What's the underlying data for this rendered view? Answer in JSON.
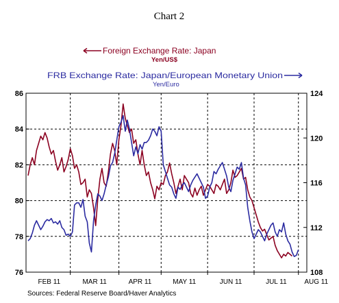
{
  "chart_data": {
    "type": "line",
    "title": "Chart 2",
    "x_categories": [
      "FEB 11",
      "MAR 11",
      "APR 11",
      "MAY 11",
      "JUN 11",
      "JUL 11",
      "AUG 11"
    ],
    "y_left": {
      "min": 76,
      "max": 86,
      "ticks": [
        "76",
        "78",
        "80",
        "82",
        "84",
        "86"
      ]
    },
    "y_right": {
      "min": 108,
      "max": 124,
      "ticks": [
        "108",
        "112",
        "116",
        "120",
        "124"
      ]
    },
    "grid": true,
    "source": "Sources:  Federal Reserve Board/Haver Analytics",
    "series": [
      {
        "name": "Foreign Exchange Rate: Japan",
        "unit": "Yen/US$",
        "axis": "left",
        "color": "#8b0020",
        "x": [
          0,
          1,
          2,
          3,
          4,
          5,
          6,
          7,
          8,
          9,
          10,
          11,
          12,
          13,
          14,
          15,
          16,
          17,
          18,
          19,
          20,
          21,
          22,
          23,
          24,
          25,
          26,
          27,
          28,
          29,
          30,
          31,
          32,
          33,
          34,
          35,
          36,
          37,
          38,
          39,
          40,
          41,
          42,
          43,
          44,
          45,
          46,
          47,
          48,
          49,
          50,
          51,
          52,
          53,
          54,
          55,
          56,
          57,
          58,
          59,
          60,
          61,
          62,
          63,
          64,
          65,
          66,
          67,
          68,
          69,
          70,
          71,
          72,
          73,
          74,
          75,
          76,
          77,
          78,
          79,
          80,
          81,
          82,
          83,
          84,
          85,
          86,
          87,
          88,
          89,
          90,
          91,
          92,
          93,
          94,
          95,
          96,
          97,
          98,
          99,
          100,
          101,
          102,
          103,
          104,
          105,
          106,
          107,
          108,
          109,
          110,
          111,
          112,
          113,
          114,
          115,
          116,
          117,
          118,
          119,
          120,
          121,
          122,
          123,
          124,
          125
        ],
        "values": [
          81.4,
          82.0,
          82.4,
          82.0,
          82.8,
          83.2,
          83.6,
          83.4,
          83.8,
          83.5,
          83.0,
          82.6,
          82.8,
          82.2,
          81.7,
          82.0,
          82.4,
          81.6,
          81.9,
          82.3,
          82.9,
          82.5,
          81.8,
          82.0,
          81.6,
          80.9,
          81.0,
          81.2,
          80.2,
          80.6,
          80.4,
          79.6,
          78.6,
          80.1,
          81.2,
          81.8,
          81.0,
          80.8,
          81.6,
          82.6,
          83.2,
          82.8,
          82.0,
          83.4,
          84.2,
          85.4,
          84.6,
          84.2,
          83.8,
          84.0,
          83.2,
          83.4,
          82.6,
          82.0,
          82.8,
          82.0,
          81.4,
          81.6,
          81.0,
          80.6,
          80.1,
          80.8,
          80.6,
          81.0,
          80.9,
          81.4,
          81.6,
          82.1,
          81.5,
          81.0,
          80.4,
          80.8,
          81.2,
          80.6,
          81.4,
          81.2,
          81.0,
          80.4,
          80.2,
          80.7,
          80.3,
          80.6,
          80.8,
          80.3,
          80.6,
          80.9,
          80.8,
          80.6,
          80.4,
          80.9,
          80.8,
          80.6,
          80.9,
          81.2,
          80.4,
          80.6,
          81.0,
          81.7,
          81.3,
          81.4,
          81.6,
          81.8,
          81.2,
          81.3,
          80.6,
          80.2,
          80.0,
          79.6,
          79.2,
          78.8,
          78.5,
          78.3,
          78.4,
          78.1,
          77.8,
          77.9,
          78.0,
          77.5,
          77.2,
          77.0,
          76.8,
          77.0,
          76.9,
          77.1,
          77.0,
          76.9
        ]
      },
      {
        "name": "FRB Exchange Rate: Japan/European Monetary Union",
        "unit": "Yen/Euro",
        "axis": "right",
        "color": "#2a2aa0",
        "x": [
          0,
          1,
          2,
          3,
          4,
          5,
          6,
          7,
          8,
          9,
          10,
          11,
          12,
          13,
          14,
          15,
          16,
          17,
          18,
          19,
          20,
          21,
          22,
          23,
          24,
          25,
          26,
          27,
          28,
          29,
          30,
          31,
          32,
          33,
          34,
          35,
          36,
          37,
          38,
          39,
          40,
          41,
          42,
          43,
          44,
          45,
          46,
          47,
          48,
          49,
          50,
          51,
          52,
          53,
          54,
          55,
          56,
          57,
          58,
          59,
          60,
          61,
          62,
          63,
          64,
          65,
          66,
          67,
          68,
          69,
          70,
          71,
          72,
          73,
          74,
          75,
          76,
          77,
          78,
          79,
          80,
          81,
          82,
          83,
          84,
          85,
          86,
          87,
          88,
          89,
          90,
          91,
          92,
          93,
          94,
          95,
          96,
          97,
          98,
          99,
          100,
          101,
          102,
          103,
          104,
          105,
          106,
          107,
          108,
          109,
          110,
          111,
          112,
          113,
          114,
          115,
          116,
          117,
          118,
          119,
          120,
          121,
          122,
          123,
          124,
          125,
          126,
          127,
          128
        ],
        "values": [
          110.8,
          111.0,
          111.5,
          112.2,
          112.6,
          112.2,
          111.8,
          112.1,
          112.5,
          112.7,
          112.6,
          112.8,
          112.4,
          112.5,
          112.3,
          112.6,
          112.0,
          111.8,
          111.3,
          111.4,
          111.2,
          111.6,
          114.0,
          114.2,
          114.2,
          113.8,
          114.5,
          113.0,
          112.5,
          110.6,
          109.8,
          112.6,
          114.0,
          115.0,
          114.8,
          114.4,
          115.0,
          115.8,
          116.5,
          117.5,
          117.8,
          118.6,
          119.8,
          121.0,
          121.4,
          122.0,
          120.6,
          121.6,
          120.8,
          119.6,
          118.4,
          119.2,
          118.6,
          119.4,
          119.0,
          119.6,
          119.6,
          119.8,
          120.2,
          120.8,
          120.6,
          120.2,
          121.0,
          120.6,
          117.6,
          117.0,
          116.4,
          115.8,
          115.6,
          115.0,
          114.6,
          115.6,
          115.4,
          115.8,
          116.0,
          115.6,
          115.2,
          115.8,
          116.2,
          116.5,
          116.8,
          116.4,
          116.0,
          115.6,
          114.6,
          114.8,
          115.6,
          116.0,
          117.0,
          116.8,
          117.2,
          117.5,
          117.8,
          117.2,
          116.6,
          115.6,
          115.2,
          116.2,
          116.8,
          117.4,
          117.2,
          117.8,
          116.4,
          115.8,
          113.8,
          112.6,
          111.6,
          111.0,
          111.4,
          111.8,
          111.6,
          111.2,
          110.8,
          111.4,
          111.8,
          112.2,
          112.4,
          111.6,
          111.2,
          111.8,
          111.6,
          112.4,
          111.4,
          110.8,
          110.5,
          109.8,
          109.4,
          109.5,
          110.0
        ]
      }
    ]
  }
}
